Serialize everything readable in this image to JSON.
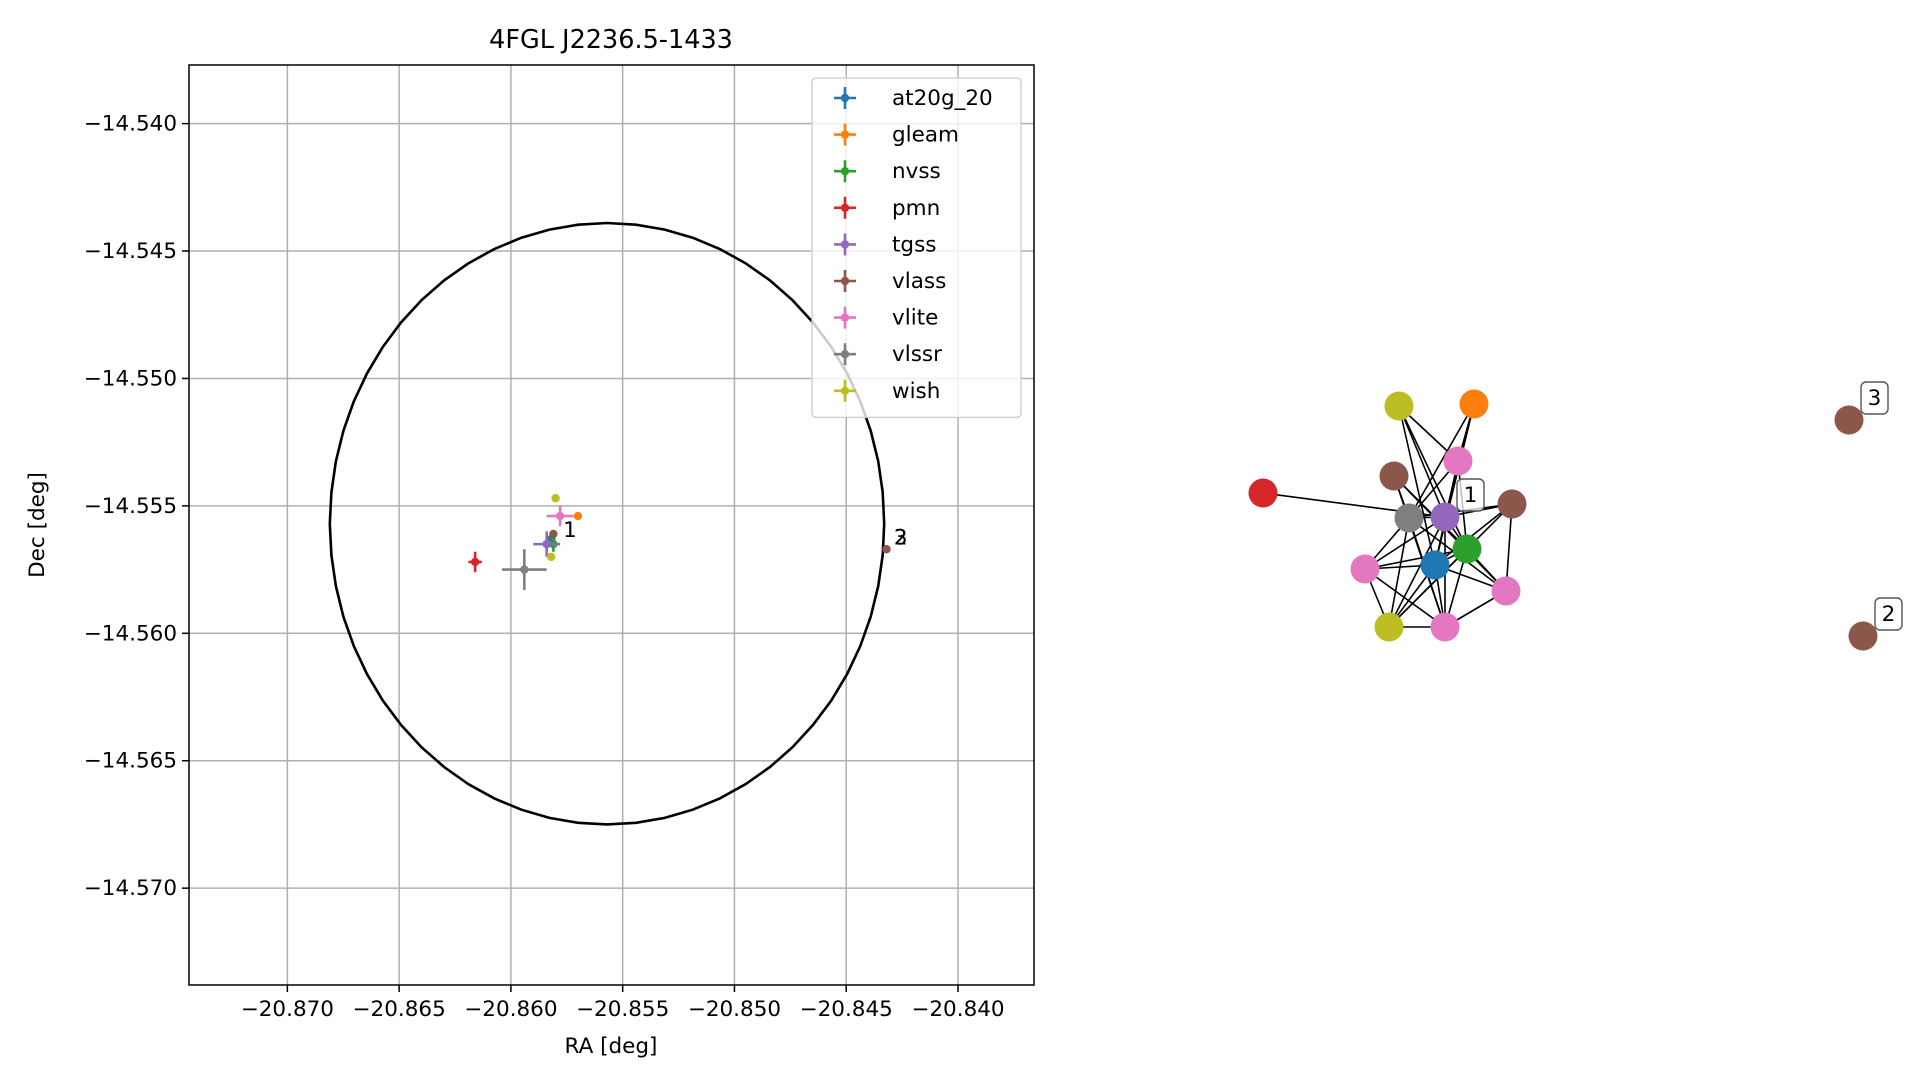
{
  "chart_data": [
    {
      "type": "scatter",
      "title": "4FGL J2236.5-1433",
      "xlabel": "RA [deg]",
      "ylabel": "Dec [deg]",
      "xlim": [
        -20.8744,
        -20.8366
      ],
      "ylim": [
        -14.5738,
        -14.5377
      ],
      "x_ticks": [
        -20.87,
        -20.865,
        -20.86,
        -20.855,
        -20.85,
        -20.845,
        -20.84
      ],
      "x_tick_labels": [
        "−20.870",
        "−20.865",
        "−20.860",
        "−20.855",
        "−20.850",
        "−20.845",
        "−20.840"
      ],
      "y_ticks": [
        -14.54,
        -14.545,
        -14.55,
        -14.555,
        -14.56,
        -14.565,
        -14.57
      ],
      "y_tick_labels": [
        "−14.540",
        "−14.545",
        "−14.550",
        "−14.555",
        "−14.560",
        "−14.565",
        "−14.570"
      ],
      "grid": true,
      "legend": "top-right",
      "ellipse": {
        "center": [
          -20.8557,
          -14.5557
        ],
        "radius_ra": 0.0124,
        "radius_dec": 0.0118,
        "color": "#000000"
      },
      "series": [
        {
          "name": "at20g_20",
          "color": "#1f77b4",
          "points": [
            {
              "x": -20.8582,
              "y": -14.5563,
              "xerr": 0.0002,
              "yerr": 0.0002
            }
          ]
        },
        {
          "name": "gleam",
          "color": "#ff7f0e",
          "points": [
            {
              "x": -20.857,
              "y": -14.5554,
              "xerr": 0.0,
              "yerr": 0.0
            }
          ]
        },
        {
          "name": "nvss",
          "color": "#2ca02c",
          "points": [
            {
              "x": -20.8581,
              "y": -14.5565,
              "xerr": 0.0003,
              "yerr": 0.0003
            }
          ]
        },
        {
          "name": "pmn",
          "color": "#d62728",
          "points": [
            {
              "x": -20.8616,
              "y": -14.5572,
              "xerr": 0.0003,
              "yerr": 0.0004
            }
          ]
        },
        {
          "name": "tgss",
          "color": "#9467bd",
          "points": [
            {
              "x": -20.8584,
              "y": -14.5565,
              "xerr": 0.0006,
              "yerr": 0.0005
            }
          ]
        },
        {
          "name": "vlass",
          "color": "#8c564b",
          "points": [
            {
              "x": -20.8581,
              "y": -14.5561,
              "xerr": 0.0,
              "yerr": 0.0
            },
            {
              "x": -20.8432,
              "y": -14.5567,
              "xerr": 0.0,
              "yerr": 0.0
            },
            {
              "x": -20.8432,
              "y": -14.5567,
              "xerr": 0.0,
              "yerr": 0.0
            }
          ]
        },
        {
          "name": "vlite",
          "color": "#e377c2",
          "points": [
            {
              "x": -20.8578,
              "y": -14.5554,
              "xerr": 0.0006,
              "yerr": 0.0004
            }
          ]
        },
        {
          "name": "vlssr",
          "color": "#7f7f7f",
          "points": [
            {
              "x": -20.8594,
              "y": -14.5575,
              "xerr": 0.001,
              "yerr": 0.0008
            }
          ]
        },
        {
          "name": "wish",
          "color": "#bcbd22",
          "points": [
            {
              "x": -20.858,
              "y": -14.5547,
              "xerr": 0.0,
              "yerr": 0.0
            },
            {
              "x": -20.8582,
              "y": -14.557,
              "xerr": 0.0,
              "yerr": 0.0
            }
          ]
        }
      ],
      "annotations": [
        {
          "text": "1",
          "x": -20.8578,
          "y": -14.5559
        },
        {
          "text": "3",
          "x": -20.843,
          "y": -14.5562
        },
        {
          "text": "2",
          "x": -20.843,
          "y": -14.5562
        }
      ]
    },
    {
      "type": "network",
      "nodes": [
        {
          "id": "n0",
          "color": "#d62728"
        },
        {
          "id": "n1",
          "color": "#bcbd22"
        },
        {
          "id": "n2",
          "color": "#ff7f0e"
        },
        {
          "id": "n3",
          "color": "#e377c2"
        },
        {
          "id": "n4",
          "color": "#8c564b"
        },
        {
          "id": "n5",
          "color": "#9467bd",
          "label": "1"
        },
        {
          "id": "n6",
          "color": "#7f7f7f"
        },
        {
          "id": "n7",
          "color": "#8c564b"
        },
        {
          "id": "n8",
          "color": "#2ca02c"
        },
        {
          "id": "n9",
          "color": "#1f77b4"
        },
        {
          "id": "n10",
          "color": "#e377c2"
        },
        {
          "id": "n11",
          "color": "#e377c2"
        },
        {
          "id": "n12",
          "color": "#bcbd22"
        },
        {
          "id": "n13",
          "color": "#e377c2"
        },
        {
          "id": "n14",
          "color": "#8c564b",
          "label": "3"
        },
        {
          "id": "n15",
          "color": "#8c564b",
          "label": "2"
        }
      ],
      "edges": [
        [
          "n0",
          "n5"
        ],
        [
          "n1",
          "n5"
        ],
        [
          "n1",
          "n8"
        ],
        [
          "n1",
          "n9"
        ],
        [
          "n1",
          "n3"
        ],
        [
          "n2",
          "n6"
        ],
        [
          "n2",
          "n9"
        ],
        [
          "n2",
          "n5"
        ],
        [
          "n2",
          "n3"
        ],
        [
          "n3",
          "n8"
        ],
        [
          "n3",
          "n9"
        ],
        [
          "n3",
          "n6"
        ],
        [
          "n4",
          "n8"
        ],
        [
          "n4",
          "n6"
        ],
        [
          "n4",
          "n11"
        ],
        [
          "n4",
          "n13"
        ],
        [
          "n5",
          "n10"
        ],
        [
          "n5",
          "n12"
        ],
        [
          "n5",
          "n7"
        ],
        [
          "n5",
          "n6"
        ],
        [
          "n5",
          "n13"
        ],
        [
          "n5",
          "n8"
        ],
        [
          "n6",
          "n7"
        ],
        [
          "n6",
          "n10"
        ],
        [
          "n6",
          "n12"
        ],
        [
          "n6",
          "n13"
        ],
        [
          "n6",
          "n11"
        ],
        [
          "n7",
          "n9"
        ],
        [
          "n7",
          "n12"
        ],
        [
          "n7",
          "n11"
        ],
        [
          "n8",
          "n10"
        ],
        [
          "n8",
          "n12"
        ],
        [
          "n8",
          "n13"
        ],
        [
          "n8",
          "n11"
        ],
        [
          "n8",
          "n9"
        ],
        [
          "n9",
          "n10"
        ],
        [
          "n9",
          "n12"
        ],
        [
          "n9",
          "n13"
        ],
        [
          "n9",
          "n11"
        ],
        [
          "n10",
          "n13"
        ],
        [
          "n10",
          "n12"
        ],
        [
          "n11",
          "n13"
        ],
        [
          "n12",
          "n13"
        ]
      ]
    }
  ]
}
